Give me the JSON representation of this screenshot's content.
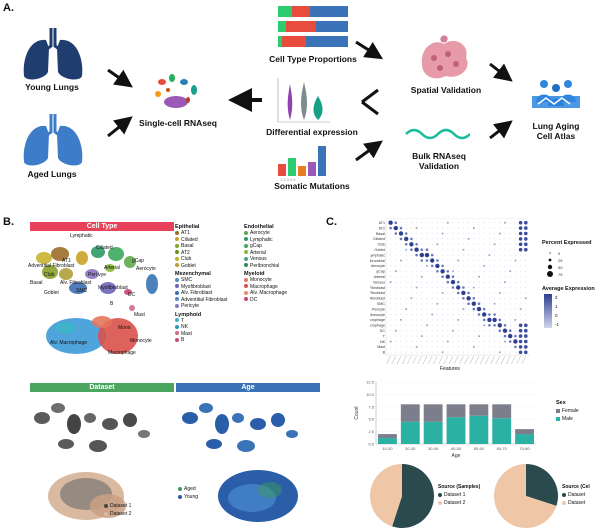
{
  "panels": {
    "a": "A.",
    "b": "B.",
    "c": "C."
  },
  "overview": {
    "young_lungs": "Young Lungs",
    "aged_lungs": "Aged Lungs",
    "scrnaseq": "Single-cell RNAseq",
    "cell_type_proportions": "Cell Type Proportions",
    "differential_expression": "Differential expression",
    "somatic_mutations": "Somatic Mutations",
    "spatial_validation": "Spatial Validation",
    "bulk_validation": "Bulk RNAseq\nValidation",
    "atlas": "Lung Aging\nCell Atlas"
  },
  "colors": {
    "cell_type": "#e8415a",
    "dataset": "#4aa65f",
    "age": "#3a73b7",
    "lung_dark": "#1f3d6e",
    "lung_light": "#3d7cc9"
  },
  "umap": {
    "cell_type_title": "Cell Type",
    "dataset_title": "Dataset",
    "age_title": "Age",
    "cluster_labels": [
      "Lymphatic",
      "Ciliated",
      "Adventitial Fibroblast",
      "AT1",
      "Basal",
      "Club",
      "Goblet",
      "Aerocyte",
      "gCap",
      "Arterial",
      "Peri vye",
      "Myofibroblast",
      "Alv. Fibroblast",
      "SMC",
      "DC",
      "Mast",
      "B",
      "Mono",
      "Alv. Macrophage",
      "Monocyte",
      "Macrophage"
    ],
    "dataset_legend": [
      "Dataset 1",
      "Dataset 2"
    ],
    "age_legend": [
      "Aged",
      "Young"
    ]
  },
  "legend_groups": [
    {
      "title": "Epithelial",
      "items": [
        {
          "label": "AT1",
          "color": "#9c6d2a"
        },
        {
          "label": "Ciliated",
          "color": "#c9a227"
        },
        {
          "label": "Basal",
          "color": "#8aa02a"
        },
        {
          "label": "AT2",
          "color": "#6b8f1f"
        },
        {
          "label": "Club",
          "color": "#c6b32d"
        },
        {
          "label": "Goblet",
          "color": "#b0a03a"
        }
      ]
    },
    {
      "title": "Mezenchymal",
      "items": [
        {
          "label": "SMC",
          "color": "#4e8fb8"
        },
        {
          "label": "Myofibroblast",
          "color": "#6b63b5"
        },
        {
          "label": "Alv. Fibroblast",
          "color": "#3f6db2"
        },
        {
          "label": "Adventitial Fibroblast",
          "color": "#5c86c4"
        },
        {
          "label": "Pericyte",
          "color": "#8c74c1"
        }
      ]
    },
    {
      "title": "Lymphoid",
      "items": [
        {
          "label": "T",
          "color": "#3cb5c7"
        },
        {
          "label": "NK",
          "color": "#2f97b3"
        },
        {
          "label": "Mast",
          "color": "#d26a8a"
        },
        {
          "label": "B",
          "color": "#c14d74"
        }
      ]
    },
    {
      "title": "Endothelial",
      "items": [
        {
          "label": "Aerocyte",
          "color": "#5fa84b"
        },
        {
          "label": "Lymphatic",
          "color": "#2c9a67"
        },
        {
          "label": "gCap",
          "color": "#3ca95c"
        },
        {
          "label": "Arterial",
          "color": "#88b73b"
        },
        {
          "label": "Venous",
          "color": "#41a391"
        },
        {
          "label": "Peribronchial",
          "color": "#2f8c54"
        }
      ]
    },
    {
      "title": "Myeloid",
      "items": [
        {
          "label": "Monocyte",
          "color": "#e5755c"
        },
        {
          "label": "Macrophage",
          "color": "#d9514a"
        },
        {
          "label": "Alv. Macrophage",
          "color": "#e88e6c"
        },
        {
          "label": "DC",
          "color": "#c7457a"
        }
      ]
    }
  ],
  "dotplot": {
    "rows": [
      "AT1",
      "AT2",
      "Basal",
      "Ciliated",
      "Club",
      "Goblet",
      "Lymphatic",
      "Peribronchial",
      "Aerocyte",
      "gCap",
      "Arterial",
      "Venous",
      "Adventitial Fibroblast",
      "Alv. Fibroblast",
      "Myofibroblast",
      "SMC",
      "Pericyte",
      "Monocyte",
      "Macrophage",
      "Alv. Macrophage",
      "DC",
      "T",
      "NK",
      "Mast",
      "B"
    ],
    "x_title": "Features",
    "pct_title": "Percent Expressed",
    "pct_values": [
      "0",
      "25",
      "50",
      "75"
    ],
    "avg_title": "Average Expression",
    "avg_ticks": [
      "2",
      "1",
      "0",
      "-1"
    ]
  },
  "chart_data": {
    "type": "bar",
    "categories": [
      "10-20",
      "20-30",
      "30-40",
      "40-50",
      "50-60",
      "60-70",
      "70-80"
    ],
    "series": [
      {
        "name": "Female",
        "values": [
          0.8,
          3.5,
          3.5,
          2.6,
          2.3,
          2.8,
          1.0
        ]
      },
      {
        "name": "Male",
        "values": [
          1.2,
          4.5,
          4.5,
          5.4,
          5.7,
          5.2,
          2.0
        ]
      }
    ],
    "xlabel": "Age",
    "ylabel": "Count",
    "ylim": [
      0,
      12.5
    ],
    "yticks": [
      "0.0",
      "2.5",
      "5.0",
      "7.5",
      "10.0",
      "12.5"
    ],
    "legend_title": "Sex",
    "colors": {
      "Female": "#7c7e8c",
      "Male": "#2bb0a4"
    }
  },
  "pies": [
    {
      "title": "Source (Samples)",
      "items": [
        {
          "label": "Dataset 1",
          "value": 55,
          "color": "#2a4a4e"
        },
        {
          "label": "Dataset 2",
          "value": 45,
          "color": "#efc7a6"
        }
      ]
    },
    {
      "title": "Source (Cel",
      "items": [
        {
          "label": "Dataset",
          "value": 30,
          "color": "#2a4a4e"
        },
        {
          "label": "Dataset",
          "value": 70,
          "color": "#efc7a6"
        }
      ]
    }
  ]
}
